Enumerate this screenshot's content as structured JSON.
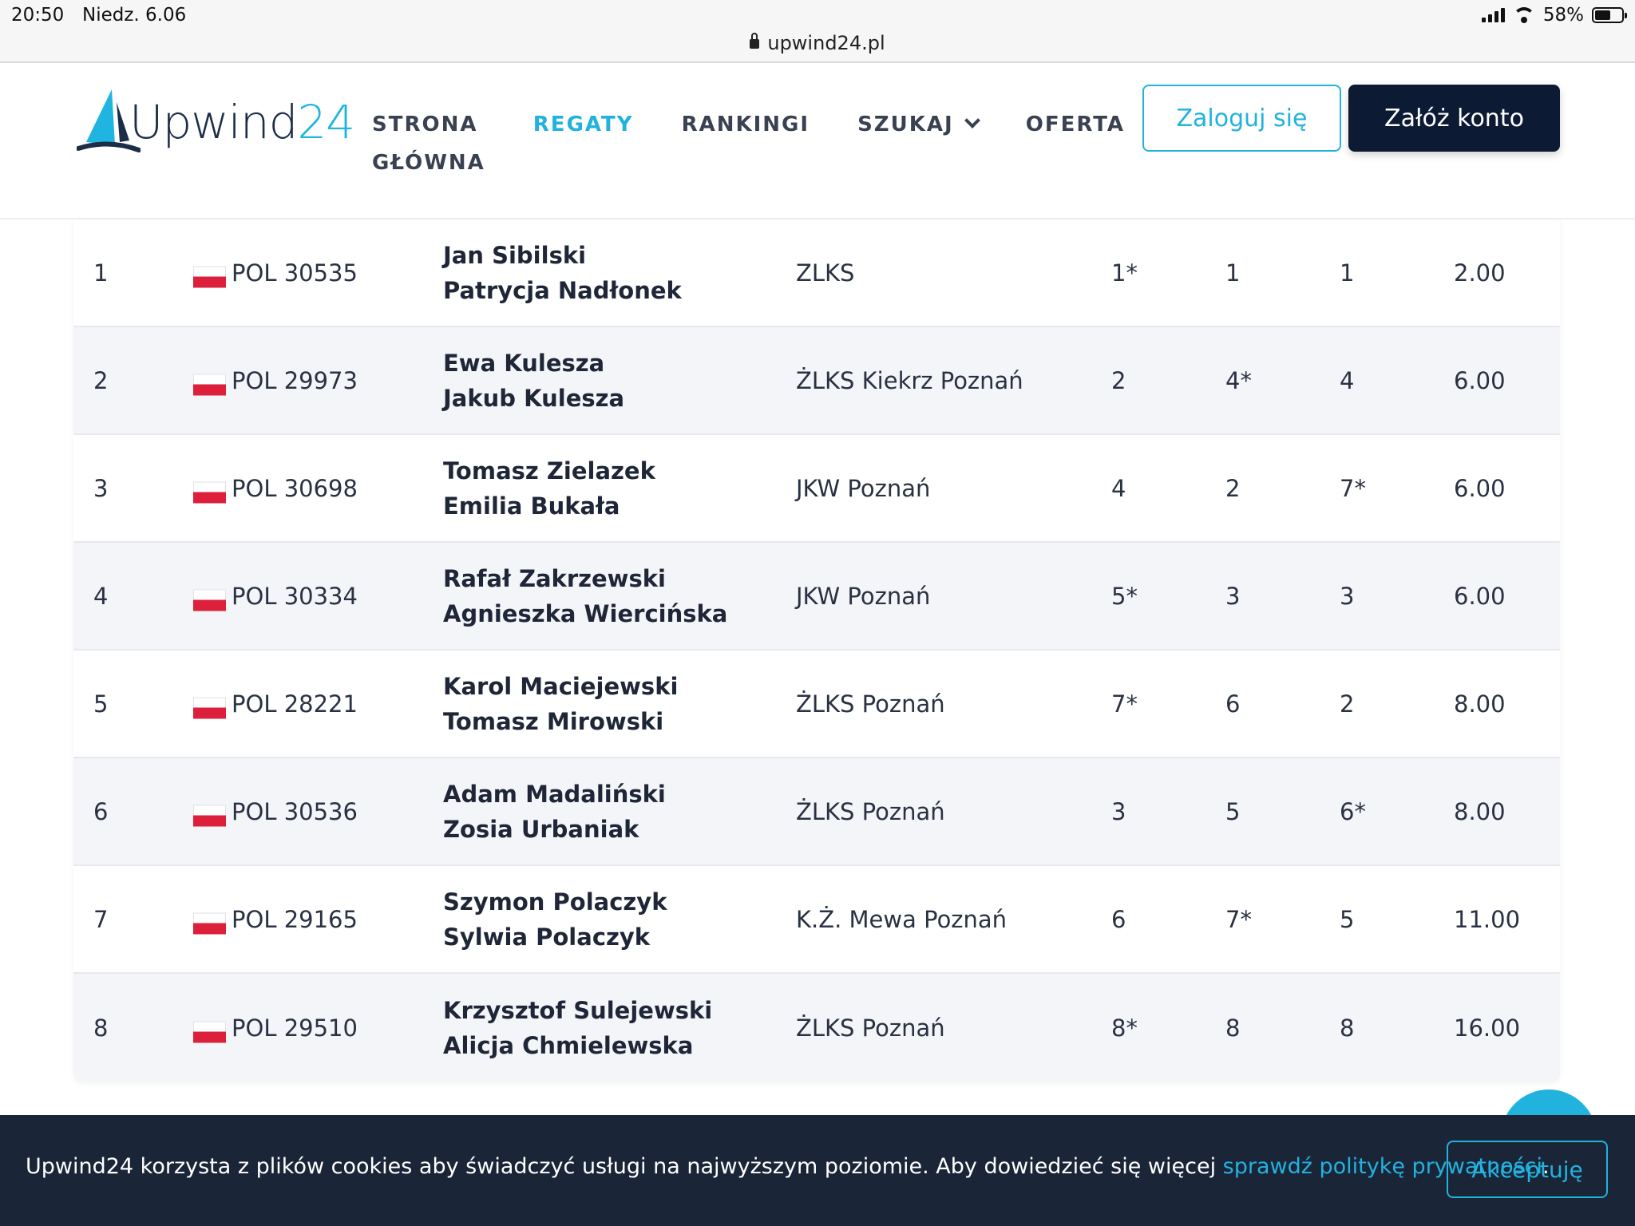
{
  "status_bar": {
    "time": "20:50",
    "date": "Niedz. 6.06",
    "url": "upwind24.pl",
    "battery": "58%",
    "battery_level": 0.58
  },
  "header": {
    "logo_text": "Upwind",
    "logo_num": "24",
    "nav": [
      {
        "line1": "STRONA",
        "line2": "GŁÓWNA",
        "active": false
      },
      {
        "line1": "REGATY",
        "active": true
      },
      {
        "line1": "RANKINGI",
        "active": false
      },
      {
        "line1": "SZUKAJ",
        "active": false,
        "dropdown": true
      },
      {
        "line1": "OFERTA",
        "active": false
      }
    ],
    "login_label": "Zaloguj się",
    "register_label": "Załóż konto"
  },
  "results": [
    {
      "rank": "1",
      "sail": "POL 30535",
      "helm": "Jan Sibilski",
      "crew": "Patrycja Nadłonek",
      "club": "ZLKS",
      "r1": "1*",
      "r2": "1",
      "r3": "1",
      "points": "2.00"
    },
    {
      "rank": "2",
      "sail": "POL 29973",
      "helm": "Ewa Kulesza",
      "crew": "Jakub Kulesza",
      "club": "ŻLKS Kiekrz Poznań",
      "r1": "2",
      "r2": "4*",
      "r3": "4",
      "points": "6.00"
    },
    {
      "rank": "3",
      "sail": "POL 30698",
      "helm": "Tomasz Zielazek",
      "crew": "Emilia Bukała",
      "club": "JKW Poznań",
      "r1": "4",
      "r2": "2",
      "r3": "7*",
      "points": "6.00"
    },
    {
      "rank": "4",
      "sail": "POL 30334",
      "helm": "Rafał Zakrzewski",
      "crew": "Agnieszka Wiercińska",
      "club": "JKW Poznań",
      "r1": "5*",
      "r2": "3",
      "r3": "3",
      "points": "6.00"
    },
    {
      "rank": "5",
      "sail": "POL 28221",
      "helm": "Karol Maciejewski",
      "crew": "Tomasz Mirowski",
      "club": "ŻLKS Poznań",
      "r1": "7*",
      "r2": "6",
      "r3": "2",
      "points": "8.00"
    },
    {
      "rank": "6",
      "sail": "POL 30536",
      "helm": "Adam Madaliński",
      "crew": "Zosia Urbaniak",
      "club": "ŻLKS Poznań",
      "r1": "3",
      "r2": "5",
      "r3": "6*",
      "points": "8.00"
    },
    {
      "rank": "7",
      "sail": "POL 29165",
      "helm": "Szymon Polaczyk",
      "crew": "Sylwia Polaczyk",
      "club": "K.Ż. Mewa Poznań",
      "r1": "6",
      "r2": "7*",
      "r3": "5",
      "points": "11.00"
    },
    {
      "rank": "8",
      "sail": "POL 29510",
      "helm": "Krzysztof Sulejewski",
      "crew": "Alicja Chmielewska",
      "club": "ŻLKS Poznań",
      "r1": "8*",
      "r2": "8",
      "r3": "8",
      "points": "16.00"
    }
  ],
  "cookie": {
    "text": "Upwind24 korzysta z plików cookies aby świadczyć usługi na najwyższym poziomie. Aby dowiedzieć się więcej ",
    "link": "sprawdź politykę prywatności",
    "after": ".",
    "accept_label": "Akceptuję"
  },
  "colors": {
    "accent": "#22b2de",
    "dark_navy": "#0d1a33",
    "cookie_bg": "#1b2538",
    "flag_red": "#dc1f3b"
  }
}
